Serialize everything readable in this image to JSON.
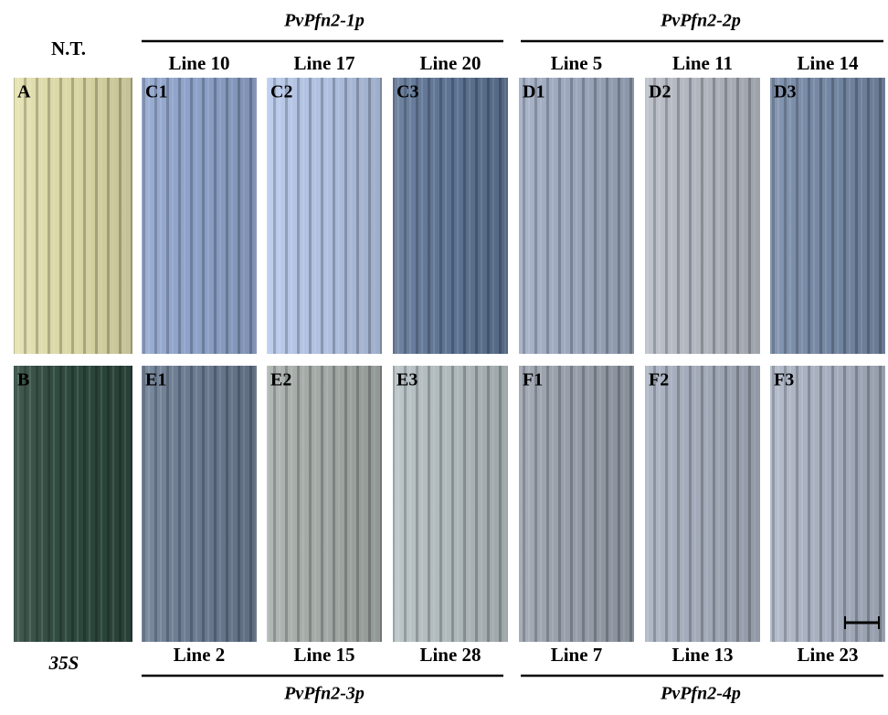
{
  "header": {
    "left_top": "N.T.",
    "left_bottom": "35S"
  },
  "top_groups": [
    {
      "title": "PvPfn2-1p"
    },
    {
      "title": "PvPfn2-2p"
    }
  ],
  "bottom_groups": [
    {
      "title": "PvPfn2-3p"
    },
    {
      "title": "PvPfn2-4p"
    }
  ],
  "rows": [
    {
      "panels": [
        {
          "letter": "A"
        },
        {
          "letter": "C1",
          "line": "Line 10"
        },
        {
          "letter": "C2",
          "line": "Line 17"
        },
        {
          "letter": "C3",
          "line": "Line 20"
        },
        {
          "letter": "D1",
          "line": "Line 5"
        },
        {
          "letter": "D2",
          "line": "Line 11"
        },
        {
          "letter": "D3",
          "line": "Line 14"
        }
      ]
    },
    {
      "panels": [
        {
          "letter": "B"
        },
        {
          "letter": "E1",
          "line": "Line 2"
        },
        {
          "letter": "E2",
          "line": "Line 15"
        },
        {
          "letter": "E3",
          "line": "Line 28"
        },
        {
          "letter": "F1",
          "line": "Line 7"
        },
        {
          "letter": "F2",
          "line": "Line 13"
        },
        {
          "letter": "F3",
          "line": "Line 23"
        }
      ]
    }
  ]
}
